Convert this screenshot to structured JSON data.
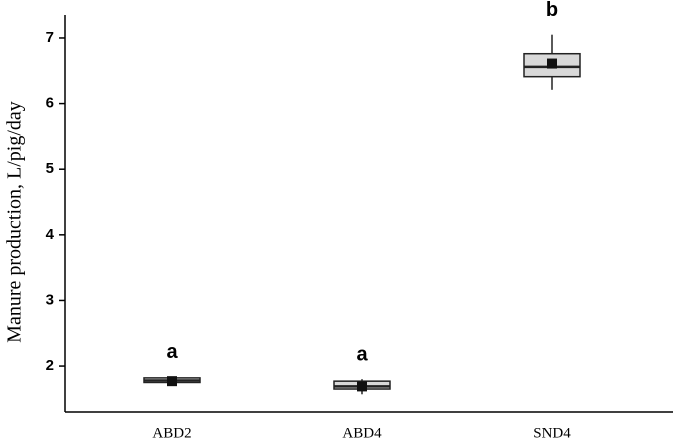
{
  "chart_data": {
    "type": "box",
    "y_label": "Manure production, L/pig/day",
    "categories": [
      "ABD2",
      "ABD4",
      "SND4"
    ],
    "whisker_low": [
      1.73,
      1.57,
      6.21
    ],
    "q1": [
      1.75,
      1.65,
      6.41
    ],
    "median": [
      1.78,
      1.69,
      6.56
    ],
    "q3": [
      1.82,
      1.77,
      6.76
    ],
    "whisker_high": [
      1.84,
      1.8,
      7.05
    ],
    "mean": [
      1.77,
      1.69,
      6.61
    ],
    "annotations": [
      "a",
      "a",
      "b"
    ],
    "box_color": "#d9d9d9",
    "line_color": "#222222",
    "mean_color": "#111111",
    "ylim": [
      1.3,
      7.35
    ],
    "yticks": [
      2,
      3,
      4,
      5,
      6,
      7
    ],
    "grid": false
  }
}
